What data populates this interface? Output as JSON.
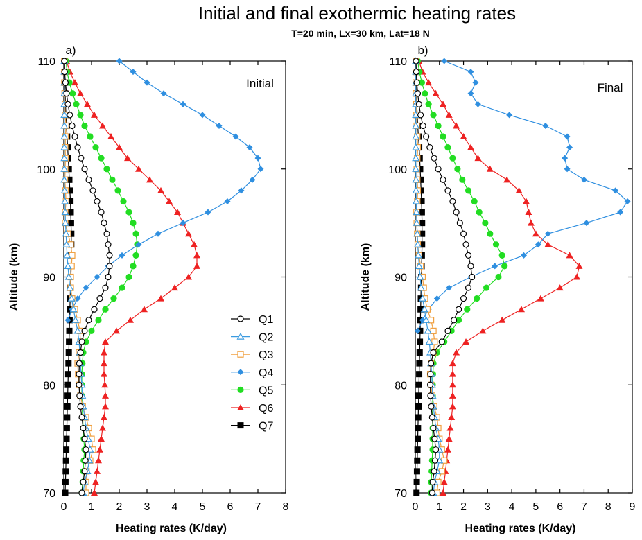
{
  "title": "Initial and final exothermic heating rates",
  "subtitle": "T=20 min, Lx=30 km, Lat=18 N",
  "chart_data": [
    {
      "type": "line",
      "panel_label": "a)",
      "inner_label": "Initial",
      "xlabel": "Heating rates (K/day)",
      "ylabel": "Altitude (km)",
      "xlim": [
        0,
        8
      ],
      "ylim": [
        70,
        110
      ],
      "xticks": [
        "0",
        "1",
        "2",
        "3",
        "4",
        "5",
        "6",
        "7",
        "8"
      ],
      "yticks": [
        "70",
        "80",
        "90",
        "100",
        "110"
      ],
      "legend": {
        "position": "right-middle",
        "entries": [
          "Q1",
          "Q2",
          "Q3",
          "Q4",
          "Q5",
          "Q6",
          "Q7"
        ]
      },
      "y": [
        70,
        71,
        72,
        73,
        74,
        75,
        76,
        77,
        78,
        79,
        80,
        81,
        82,
        83,
        84,
        85,
        86,
        87,
        88,
        89,
        90,
        91,
        92,
        93,
        94,
        95,
        96,
        97,
        98,
        99,
        100,
        101,
        102,
        103,
        104,
        105,
        106,
        107,
        108,
        109,
        110
      ],
      "series": [
        {
          "name": "Q1",
          "color": "#000000",
          "marker": "open-circle",
          "values": [
            0.65,
            0.7,
            0.75,
            0.78,
            0.8,
            0.75,
            0.7,
            0.65,
            0.6,
            0.57,
            0.55,
            0.55,
            0.56,
            0.6,
            0.65,
            0.75,
            0.9,
            1.1,
            1.3,
            1.5,
            1.6,
            1.65,
            1.65,
            1.6,
            1.55,
            1.45,
            1.35,
            1.2,
            1.05,
            0.9,
            0.75,
            0.62,
            0.5,
            0.4,
            0.3,
            0.22,
            0.15,
            0.1,
            0.06,
            0.03,
            0.02
          ]
        },
        {
          "name": "Q2",
          "color": "#3b9be0",
          "marker": "open-triangle",
          "values": [
            0.7,
            0.75,
            0.85,
            0.92,
            0.95,
            0.88,
            0.8,
            0.75,
            0.7,
            0.67,
            0.65,
            0.62,
            0.6,
            0.58,
            0.55,
            0.5,
            0.42,
            0.35,
            0.28,
            0.22,
            0.18,
            0.15,
            0.12,
            0.1,
            0.08,
            0.06,
            0.05,
            0.04,
            0.03,
            0.02,
            0.02,
            0.02,
            0.02,
            0.02,
            0.02,
            0.02,
            0.02,
            0.02,
            0.02,
            0.02,
            0.02
          ]
        },
        {
          "name": "Q3",
          "color": "#f0a040",
          "marker": "open-square",
          "values": [
            0.8,
            0.8,
            0.82,
            0.95,
            1.05,
            1.0,
            0.9,
            0.8,
            0.68,
            0.6,
            0.55,
            0.52,
            0.5,
            0.55,
            0.6,
            0.58,
            0.5,
            0.4,
            0.3,
            0.25,
            0.25,
            0.28,
            0.3,
            0.25,
            0.15,
            0.05,
            0.05,
            0.08,
            0.06,
            0.04,
            0.05,
            0.06,
            0.05,
            0.06,
            0.08,
            0.05,
            0.04,
            0.03,
            0.02,
            0.02,
            0.02
          ]
        },
        {
          "name": "Q4",
          "color": "#2f8fe0",
          "marker": "filled-diamond",
          "values": [
            null,
            null,
            null,
            null,
            null,
            null,
            null,
            null,
            null,
            null,
            null,
            null,
            null,
            null,
            null,
            null,
            0.15,
            0.3,
            0.5,
            0.8,
            1.2,
            1.6,
            2.1,
            2.7,
            3.4,
            4.3,
            5.2,
            5.9,
            6.4,
            6.8,
            7.1,
            7.0,
            6.7,
            6.2,
            5.6,
            5.0,
            4.3,
            3.6,
            3.0,
            2.5,
            2.0
          ]
        },
        {
          "name": "Q5",
          "color": "#22dd22",
          "marker": "filled-circle",
          "values": [
            0.65,
            0.68,
            0.7,
            0.72,
            0.75,
            0.72,
            0.7,
            0.68,
            0.66,
            0.65,
            0.65,
            0.65,
            0.67,
            0.7,
            0.8,
            1.0,
            1.25,
            1.5,
            1.8,
            2.1,
            2.35,
            2.5,
            2.6,
            2.65,
            2.6,
            2.5,
            2.35,
            2.15,
            1.95,
            1.75,
            1.55,
            1.35,
            1.15,
            0.95,
            0.75,
            0.6,
            0.45,
            0.32,
            0.2,
            0.12,
            0.08
          ]
        },
        {
          "name": "Q6",
          "color": "#ee2222",
          "marker": "filled-triangle",
          "values": [
            1.1,
            1.15,
            1.2,
            1.25,
            1.3,
            1.35,
            1.4,
            1.45,
            1.5,
            1.5,
            1.48,
            1.45,
            1.45,
            1.45,
            1.5,
            1.9,
            2.4,
            2.9,
            3.5,
            4.0,
            4.5,
            4.8,
            4.8,
            4.7,
            4.5,
            4.3,
            4.1,
            3.8,
            3.5,
            3.1,
            2.7,
            2.3,
            2.0,
            1.7,
            1.4,
            1.1,
            0.85,
            0.6,
            0.4,
            0.22,
            0.1
          ]
        },
        {
          "name": "Q7",
          "color": "#000000",
          "marker": "filled-square",
          "values": [
            0.05,
            0.06,
            0.07,
            0.08,
            0.09,
            0.1,
            0.11,
            0.12,
            0.13,
            0.14,
            0.15,
            0.16,
            0.17,
            0.18,
            0.19,
            0.2,
            0.21,
            0.22,
            0.23,
            0.24,
            0.25,
            0.26,
            0.27,
            0.27,
            0.27,
            0.26,
            0.25,
            0.24,
            0.22,
            0.2,
            0.18,
            0.16,
            0.14,
            0.12,
            0.1,
            0.08,
            0.06,
            0.05,
            0.04,
            0.03,
            0.03
          ]
        }
      ]
    },
    {
      "type": "line",
      "panel_label": "b)",
      "inner_label": "Final",
      "xlabel": "Heating rates (K/day)",
      "ylabel": "Altitude (km)",
      "xlim": [
        0,
        9
      ],
      "ylim": [
        70,
        110
      ],
      "xticks": [
        "0",
        "1",
        "2",
        "3",
        "4",
        "5",
        "6",
        "7",
        "8",
        "9"
      ],
      "yticks": [
        "70",
        "80",
        "90",
        "100",
        "110"
      ],
      "y": [
        70,
        71,
        72,
        73,
        74,
        75,
        76,
        77,
        78,
        79,
        80,
        81,
        82,
        83,
        84,
        85,
        86,
        87,
        88,
        89,
        90,
        91,
        92,
        93,
        94,
        95,
        96,
        97,
        98,
        99,
        100,
        101,
        102,
        103,
        104,
        105,
        106,
        107,
        108,
        109,
        110
      ],
      "series": [
        {
          "name": "Q1",
          "color": "#000000",
          "marker": "open-circle",
          "values": [
            0.7,
            0.72,
            0.78,
            0.82,
            0.85,
            0.8,
            0.75,
            0.7,
            0.66,
            0.63,
            0.62,
            0.63,
            0.65,
            0.75,
            1.1,
            1.35,
            1.6,
            1.8,
            2.0,
            2.2,
            2.35,
            2.3,
            2.2,
            2.1,
            2.0,
            1.85,
            1.7,
            1.55,
            1.35,
            1.15,
            0.95,
            0.78,
            0.6,
            0.45,
            0.32,
            0.22,
            0.15,
            0.1,
            0.06,
            0.04,
            0.03
          ]
        },
        {
          "name": "Q2",
          "color": "#3b9be0",
          "marker": "open-triangle",
          "values": [
            0.75,
            0.8,
            0.9,
            1.0,
            1.0,
            0.95,
            0.85,
            0.8,
            0.75,
            0.72,
            0.7,
            0.68,
            0.65,
            0.62,
            0.58,
            0.52,
            0.45,
            0.38,
            0.3,
            0.24,
            0.2,
            0.16,
            0.13,
            0.1,
            0.08,
            0.06,
            0.05,
            0.04,
            0.03,
            0.03,
            0.02,
            0.02,
            0.02,
            0.02,
            0.02,
            0.02,
            0.02,
            0.02,
            0.02,
            0.02,
            0.02
          ]
        },
        {
          "name": "Q3",
          "color": "#f0a040",
          "marker": "open-square",
          "values": [
            0.9,
            0.95,
            1.1,
            1.2,
            1.1,
            1.0,
            0.95,
            0.9,
            0.78,
            0.7,
            0.65,
            0.62,
            0.65,
            0.75,
            0.8,
            0.75,
            0.65,
            0.5,
            0.4,
            0.35,
            0.3,
            0.22,
            0.15,
            0.1,
            0.08,
            0.06,
            0.05,
            0.08,
            0.1,
            0.08,
            0.06,
            0.08,
            0.1,
            0.08,
            0.06,
            0.05,
            0.04,
            0.03,
            0.02,
            0.02,
            0.02
          ]
        },
        {
          "name": "Q4",
          "color": "#2f8fe0",
          "marker": "filled-diamond",
          "values": [
            null,
            null,
            null,
            null,
            null,
            null,
            null,
            null,
            null,
            null,
            null,
            null,
            null,
            null,
            null,
            0.1,
            0.3,
            0.55,
            0.9,
            1.4,
            2.3,
            3.3,
            4.5,
            5.1,
            5.5,
            7.1,
            8.5,
            8.8,
            8.3,
            7.0,
            6.3,
            6.2,
            6.4,
            6.3,
            5.4,
            3.9,
            2.6,
            2.3,
            2.5,
            2.3,
            1.2
          ]
        },
        {
          "name": "Q5",
          "color": "#22dd22",
          "marker": "filled-circle",
          "values": [
            0.65,
            0.66,
            0.68,
            0.7,
            0.72,
            0.72,
            0.72,
            0.72,
            0.72,
            0.72,
            0.72,
            0.73,
            0.75,
            0.9,
            1.2,
            1.5,
            1.8,
            2.15,
            2.55,
            2.95,
            3.45,
            3.7,
            3.6,
            3.35,
            3.1,
            2.9,
            2.65,
            2.45,
            2.2,
            1.95,
            1.75,
            1.55,
            1.35,
            1.15,
            0.95,
            0.75,
            0.55,
            0.4,
            0.27,
            0.17,
            0.1
          ]
        },
        {
          "name": "Q6",
          "color": "#ee2222",
          "marker": "filled-triangle",
          "values": [
            1.15,
            1.2,
            1.25,
            1.3,
            1.35,
            1.4,
            1.45,
            1.5,
            1.55,
            1.55,
            1.55,
            1.55,
            1.55,
            1.7,
            2.1,
            2.8,
            3.6,
            4.4,
            5.2,
            6.0,
            6.7,
            6.8,
            6.4,
            5.5,
            5.0,
            4.8,
            4.7,
            4.6,
            4.3,
            3.8,
            3.1,
            2.6,
            2.3,
            2.0,
            1.7,
            1.4,
            1.15,
            0.85,
            0.55,
            0.3,
            0.15
          ]
        },
        {
          "name": "Q7",
          "color": "#000000",
          "marker": "filled-square",
          "values": [
            0.05,
            0.06,
            0.07,
            0.08,
            0.09,
            0.1,
            0.11,
            0.12,
            0.13,
            0.14,
            0.15,
            0.16,
            0.17,
            0.18,
            0.19,
            0.2,
            0.21,
            0.22,
            0.23,
            0.24,
            0.25,
            0.26,
            0.27,
            0.28,
            0.28,
            0.28,
            0.27,
            0.26,
            0.24,
            0.22,
            0.2,
            0.18,
            0.16,
            0.13,
            0.1,
            0.08,
            0.06,
            0.05,
            0.04,
            0.03,
            0.03
          ]
        }
      ]
    }
  ]
}
